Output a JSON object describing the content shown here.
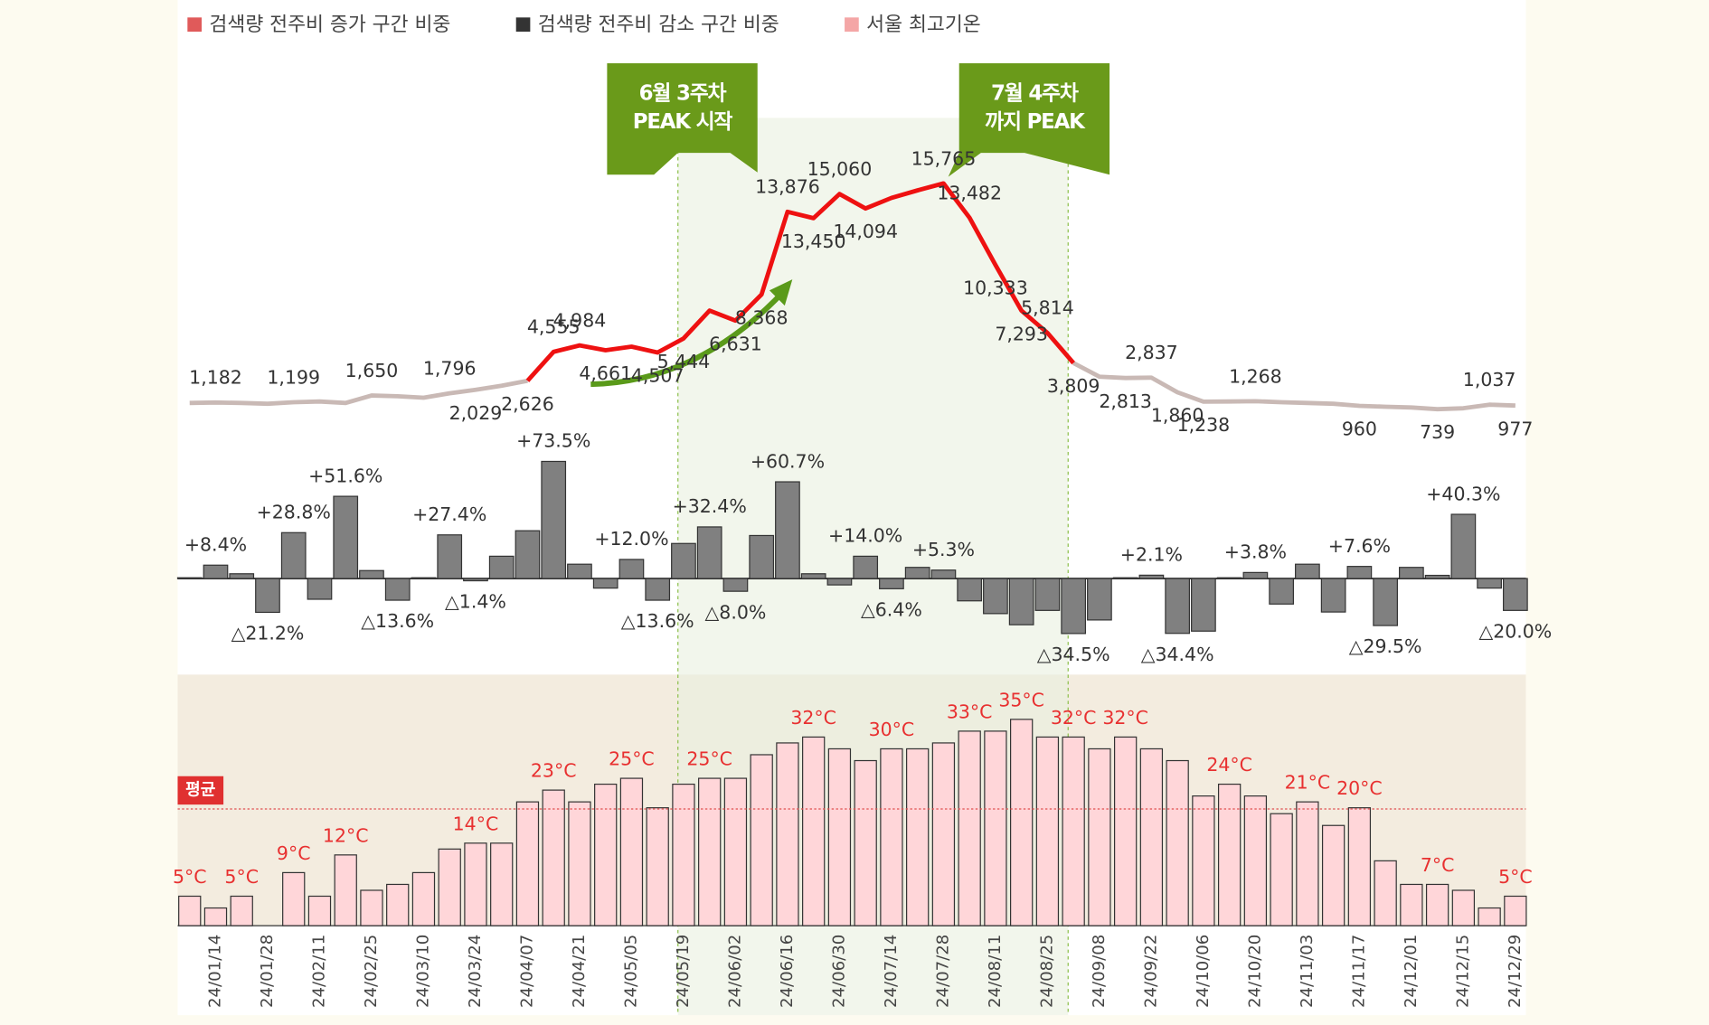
{
  "chart_data": [
    {
      "type": "line",
      "legend": [
        {
          "name": "검색량 전주비 증가 구간 비중",
          "color": "#e05a5a"
        },
        {
          "name": "검색량 전주비 감소 구간 비중",
          "color": "#333333"
        },
        {
          "name": "서울 최고기온",
          "color": "#f4a6a6"
        }
      ],
      "annotations": [
        [
          "6월 3주차",
          "PEAK 시작"
        ],
        [
          "7월 4주차",
          "까지 PEAK"
        ]
      ],
      "ylim": [
        0,
        17000
      ],
      "series": [
        {
          "color": "#c9b9b5",
          "values": [
            1150,
            1182,
            1150,
            1100,
            1199,
            1250,
            1150,
            1650,
            1600,
            1500,
            1796,
            2029,
            2300,
            2626,
            null,
            null,
            null,
            null,
            null,
            null,
            null,
            null,
            null,
            null,
            null,
            null,
            null,
            null,
            null,
            null,
            null,
            null,
            null,
            null,
            3809,
            2900,
            2813,
            2837,
            1860,
            1238,
            1250,
            1268,
            1200,
            1150,
            1100,
            960,
            900,
            850,
            739,
            800,
            1037,
            977
          ],
          "value_labels": [
            null,
            "1,182",
            null,
            null,
            "1,199",
            null,
            null,
            "1,650",
            null,
            null,
            "1,796",
            "2,029",
            null,
            null,
            null,
            null,
            null,
            null,
            null,
            null,
            null,
            null,
            null,
            null,
            null,
            null,
            null,
            null,
            null,
            null,
            null,
            null,
            null,
            null,
            null,
            null,
            "2,813",
            "2,837",
            "1,860",
            "1,238",
            null,
            "1,268",
            null,
            null,
            null,
            "960",
            null,
            null,
            "739",
            null,
            "1,037",
            "977"
          ]
        },
        {
          "color": "#ee1111",
          "values": [
            null,
            null,
            null,
            null,
            null,
            null,
            null,
            null,
            null,
            null,
            null,
            null,
            null,
            2626,
            4555,
            4984,
            4661,
            4900,
            4507,
            5444,
            7300,
            6631,
            8368,
            13876,
            13450,
            15060,
            14094,
            14800,
            15300,
            15765,
            13482,
            10333,
            7293,
            5814,
            3809,
            null,
            null,
            null,
            null,
            null,
            null,
            null,
            null,
            null,
            null,
            null,
            null,
            null,
            null,
            null,
            null,
            null
          ],
          "value_labels": [
            null,
            null,
            null,
            null,
            null,
            null,
            null,
            null,
            null,
            null,
            null,
            null,
            null,
            "2,626",
            "4,555",
            "4,984",
            "4,661",
            null,
            "4,507",
            "5,444",
            null,
            "6,631",
            "8,368",
            "13,876",
            "13,450",
            "15,060",
            "14,094",
            null,
            null,
            "15,765",
            "13,482",
            "10,333",
            "7,293",
            "5,814",
            "3,809",
            null,
            null,
            null,
            null,
            null,
            null,
            null,
            null,
            null,
            null,
            null,
            null,
            null,
            null,
            null,
            null,
            null
          ]
        }
      ]
    },
    {
      "type": "bar",
      "color": "#808080",
      "ylim": [
        -50,
        90
      ],
      "values": [
        0.5,
        8.4,
        3,
        -21.2,
        28.8,
        -13,
        51.6,
        5,
        -13.6,
        0.5,
        27.4,
        -1.4,
        14,
        30,
        73.5,
        9,
        -6,
        12,
        -13.6,
        22,
        32.4,
        -8,
        27,
        60.7,
        3,
        -4,
        14,
        -6.4,
        7,
        5.3,
        -14,
        -22,
        -29,
        -20,
        -34.5,
        -26,
        0.5,
        2.1,
        -34.4,
        -33,
        0.5,
        3.8,
        -16,
        9,
        -21,
        7.6,
        -29.5,
        7,
        2,
        40.3,
        -6,
        -20
      ],
      "value_labels": [
        null,
        "+8.4%",
        null,
        "△21.2%",
        "+28.8%",
        null,
        "+51.6%",
        null,
        "△13.6%",
        null,
        "+27.4%",
        "△1.4%",
        null,
        null,
        "+73.5%",
        null,
        null,
        "+12.0%",
        "△13.6%",
        null,
        "+32.4%",
        "△8.0%",
        null,
        "+60.7%",
        null,
        null,
        "+14.0%",
        "△6.4%",
        null,
        "+5.3%",
        null,
        null,
        null,
        null,
        "△34.5%",
        null,
        null,
        "+2.1%",
        "△34.4%",
        null,
        null,
        "+3.8%",
        null,
        null,
        null,
        "+7.6%",
        "△29.5%",
        null,
        null,
        "+40.3%",
        null,
        "△20.0%"
      ]
    },
    {
      "type": "bar",
      "color": "#ffd6d9",
      "ylim": [
        0,
        42
      ],
      "average": {
        "value": 19.8,
        "label": "평균"
      },
      "categories": [
        null,
        "24/01/14",
        null,
        "24/01/28",
        null,
        "24/02/11",
        null,
        "24/02/25",
        null,
        "24/03/10",
        null,
        "24/03/24",
        null,
        "24/04/07",
        null,
        "24/04/21",
        null,
        "24/05/05",
        null,
        "24/05/19",
        null,
        "24/06/02",
        null,
        "24/06/16",
        null,
        "24/06/30",
        null,
        "24/07/14",
        null,
        "24/07/28",
        null,
        "24/08/11",
        null,
        "24/08/25",
        null,
        "24/09/08",
        null,
        "24/09/22",
        null,
        "24/10/06",
        null,
        "24/10/20",
        null,
        "24/11/03",
        null,
        "24/11/17",
        null,
        "24/12/01",
        null,
        "24/12/15",
        null,
        "24/12/29"
      ],
      "values": [
        5,
        3,
        5,
        0,
        9,
        5,
        12,
        6,
        7,
        9,
        13,
        14,
        14,
        21,
        23,
        21,
        24,
        25,
        20,
        24,
        25,
        25,
        29,
        31,
        32,
        30,
        28,
        30,
        30,
        31,
        33,
        33,
        35,
        32,
        32,
        30,
        32,
        30,
        28,
        22,
        24,
        22,
        19,
        21,
        17,
        20,
        11,
        7,
        7,
        6,
        3,
        5
      ],
      "value_labels": [
        "5°C",
        null,
        "5°C",
        null,
        "9°C",
        null,
        "12°C",
        null,
        null,
        null,
        null,
        "14°C",
        null,
        null,
        "23°C",
        null,
        null,
        "25°C",
        null,
        null,
        "25°C",
        null,
        null,
        null,
        "32°C",
        null,
        null,
        "30°C",
        null,
        null,
        "33°C",
        null,
        "35°C",
        null,
        "32°C",
        null,
        "32°C",
        null,
        null,
        null,
        "24°C",
        null,
        null,
        "21°C",
        null,
        "20°C",
        null,
        null,
        "7°C",
        null,
        null,
        "5°C"
      ]
    }
  ]
}
